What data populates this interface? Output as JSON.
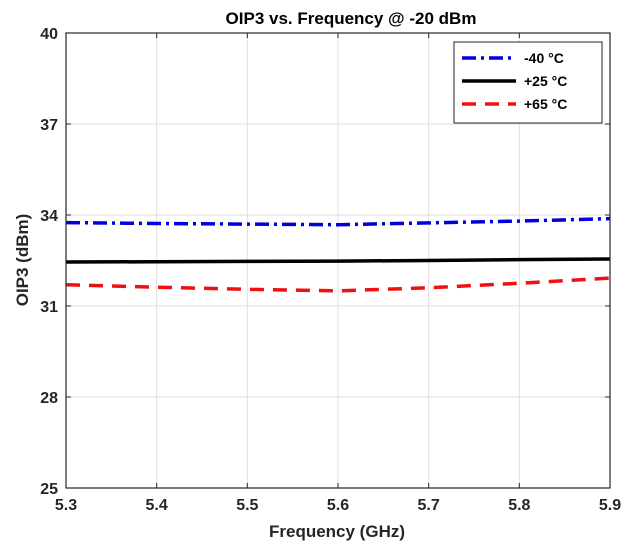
{
  "chart_data": {
    "type": "line",
    "title": "OIP3 vs. Frequency @ -20 dBm",
    "xlabel": "Frequency (GHz)",
    "ylabel": "OIP3 (dBm)",
    "xlim": [
      5.3,
      5.9
    ],
    "ylim": [
      25,
      40
    ],
    "xticks": [
      "5.3",
      "5.4",
      "5.5",
      "5.6",
      "5.7",
      "5.8",
      "5.9"
    ],
    "yticks": [
      "25",
      "28",
      "31",
      "34",
      "37",
      "40"
    ],
    "grid": true,
    "legend_position": "top-right",
    "x": [
      5.3,
      5.4,
      5.5,
      5.6,
      5.7,
      5.8,
      5.9
    ],
    "series": [
      {
        "name": "-40 °C",
        "color": "#0000dd",
        "style": "dash-dot",
        "values": [
          33.75,
          33.72,
          33.7,
          33.68,
          33.74,
          33.8,
          33.88
        ]
      },
      {
        "name": "+25 °C",
        "color": "#000000",
        "style": "solid",
        "values": [
          32.45,
          32.46,
          32.47,
          32.48,
          32.5,
          32.53,
          32.55
        ]
      },
      {
        "name": "+65 °C",
        "color": "#ee1111",
        "style": "dashed",
        "values": [
          31.7,
          31.62,
          31.55,
          31.5,
          31.6,
          31.75,
          31.92
        ]
      }
    ]
  }
}
